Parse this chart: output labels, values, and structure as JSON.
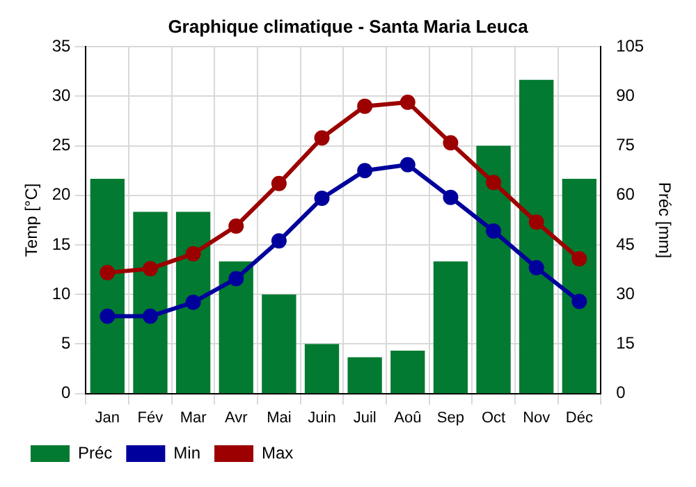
{
  "chart_data": {
    "type": "bar",
    "title": "Graphique climatique - Santa Maria Leuca",
    "ylabel": "Temp [°C]",
    "y2label": "Préc [mm]",
    "categories": [
      "Jan",
      "Fév",
      "Mar",
      "Avr",
      "Mai",
      "Juin",
      "Juil",
      "Aoû",
      "Sep",
      "Oct",
      "Nov",
      "Déc"
    ],
    "series": [
      {
        "name": "Préc",
        "axis": "y2",
        "color": "#037a31",
        "values": [
          65,
          55,
          55,
          40,
          30,
          15,
          11,
          13,
          40,
          75,
          95,
          65
        ]
      },
      {
        "name": "Min",
        "type": "line",
        "color": "#00009c",
        "values": [
          7.8,
          7.8,
          9.2,
          11.6,
          15.4,
          19.7,
          22.5,
          23.1,
          19.8,
          16.4,
          12.7,
          9.3
        ]
      },
      {
        "name": "Max",
        "type": "line",
        "color": "#9c0000",
        "values": [
          12.2,
          12.6,
          14.1,
          16.9,
          21.2,
          25.8,
          29.0,
          29.4,
          25.3,
          21.3,
          17.3,
          13.6
        ]
      }
    ],
    "ylim": [
      0,
      35
    ],
    "yticks": [
      0,
      5,
      10,
      15,
      20,
      25,
      30,
      35
    ],
    "y2lim": [
      0,
      105
    ],
    "y2ticks": [
      0,
      15,
      30,
      45,
      60,
      75,
      90,
      105
    ],
    "grid": true,
    "legend": "bottom",
    "marker": "circle",
    "line_style": "solid"
  }
}
